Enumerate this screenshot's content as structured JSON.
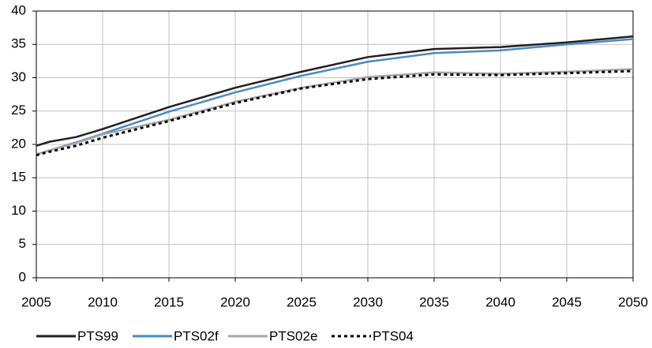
{
  "chart_data": {
    "type": "line",
    "x": [
      2005,
      2006,
      2008,
      2010,
      2015,
      2020,
      2025,
      2030,
      2035,
      2040,
      2045,
      2050
    ],
    "series": [
      {
        "name": "PTS99",
        "color": "#231f20",
        "linestyle": "solid",
        "values": [
          19.8,
          20.4,
          21.1,
          22.3,
          25.6,
          28.5,
          30.9,
          33.1,
          34.3,
          34.6,
          35.3,
          36.2
        ]
      },
      {
        "name": "PTS02f",
        "color": "#4a8ac4",
        "linestyle": "solid",
        "values": [
          18.5,
          19.1,
          20.3,
          21.6,
          24.9,
          27.8,
          30.3,
          32.4,
          33.7,
          34.1,
          35.0,
          35.8
        ]
      },
      {
        "name": "PTS02e",
        "color": "#a6a6a6",
        "linestyle": "solid",
        "values": [
          18.5,
          19.1,
          20.2,
          21.5,
          23.7,
          26.4,
          28.5,
          30.1,
          30.8,
          30.6,
          30.9,
          31.3
        ]
      },
      {
        "name": "PTS04",
        "color": "#000000",
        "linestyle": "dotted",
        "values": [
          18.4,
          18.9,
          19.8,
          21.0,
          23.5,
          26.2,
          28.4,
          29.8,
          30.5,
          30.4,
          30.7,
          31.0
        ]
      }
    ],
    "xlim": [
      2005,
      2050
    ],
    "xticks": [
      2005,
      2010,
      2015,
      2020,
      2025,
      2030,
      2035,
      2040,
      2045,
      2050
    ],
    "ylim": [
      0,
      40
    ],
    "yticks": [
      0,
      5,
      10,
      15,
      20,
      25,
      30,
      35,
      40
    ],
    "grid": true,
    "legend": "bottom"
  }
}
